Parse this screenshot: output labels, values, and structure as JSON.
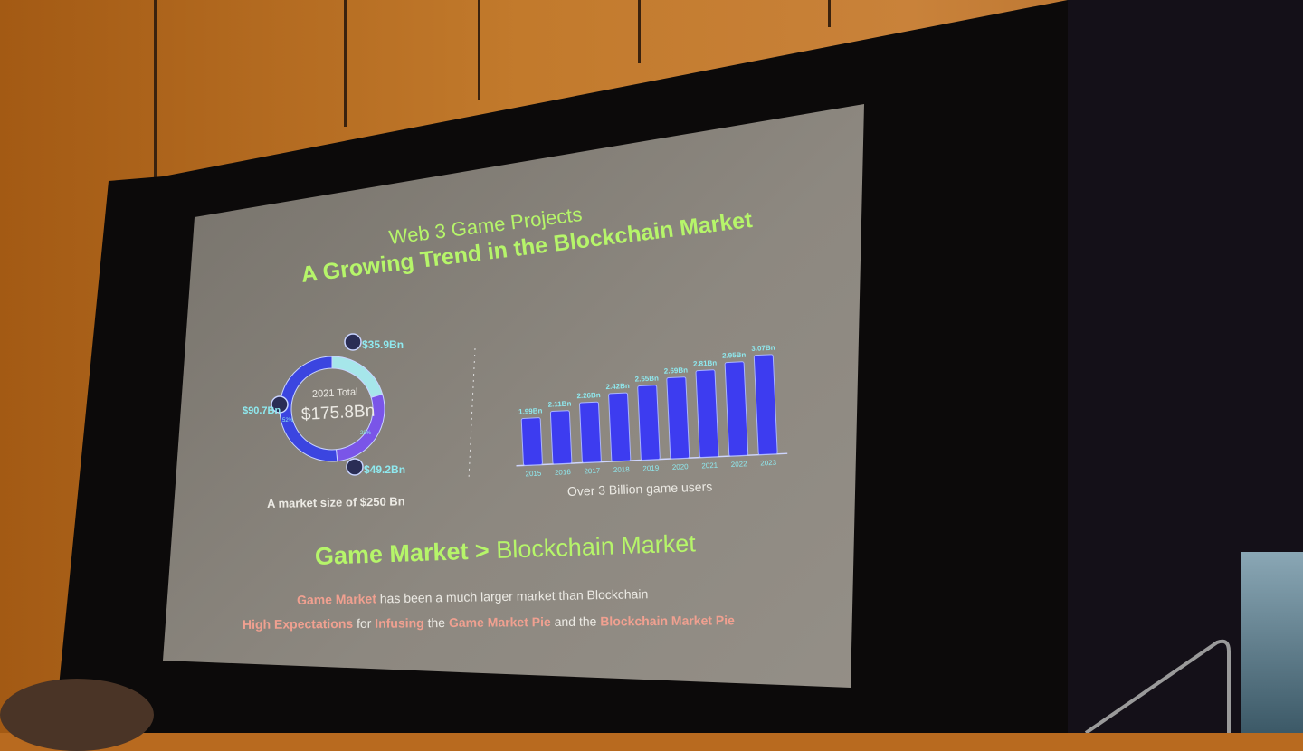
{
  "slide": {
    "title_line1": "Web 3 Game Projects",
    "title_line2": "A Growing Trend in the Blockchain Market",
    "heading_bold": "Game Market",
    "heading_sep": ">",
    "heading_rest": "Blockchain Market",
    "line1_highlight": "Game Market",
    "line1_rest": "has been a much larger market than Blockchain",
    "line2_parts": [
      "High Expectations",
      " for ",
      "Infusing",
      " the ",
      "Game Market Pie",
      " and the ",
      "Blockchain Market Pie"
    ]
  },
  "colors": {
    "title_green": "#b6f56a",
    "label_cyan": "#8fe9ef",
    "bar_blue": "#3d3cf0",
    "accent_pink": "#f0a090"
  },
  "chart_data": [
    {
      "type": "pie",
      "center_label": "2021 Total",
      "center_value": "$175.8Bn",
      "caption": "A market size of $250 Bn",
      "slices": [
        {
          "name": "Mobile",
          "value": 90.7,
          "label": "$90.7Bn",
          "percent_label": "52%",
          "icon": "smartphone-icon",
          "color": "#3b45e0"
        },
        {
          "name": "Console",
          "value": 49.2,
          "label": "$49.2Bn",
          "percent_label": "28%",
          "icon": "gamepad-icon",
          "color": "#7a55e8"
        },
        {
          "name": "PC",
          "value": 35.9,
          "label": "$35.9Bn",
          "icon": "monitor-icon",
          "color": "#a6e6ea"
        }
      ]
    },
    {
      "type": "bar",
      "caption": "Over 3 Billion game users",
      "categories": [
        "2015",
        "2016",
        "2017",
        "2018",
        "2019",
        "2020",
        "2021",
        "2022",
        "2023"
      ],
      "values": [
        1.99,
        2.11,
        2.26,
        2.42,
        2.55,
        2.69,
        2.81,
        2.95,
        3.07
      ],
      "data_labels": [
        "1.99Bn",
        "2.11Bn",
        "2.26Bn",
        "2.42Bn",
        "2.55Bn",
        "2.69Bn",
        "2.81Bn",
        "2.95Bn",
        "3.07Bn"
      ]
    }
  ]
}
